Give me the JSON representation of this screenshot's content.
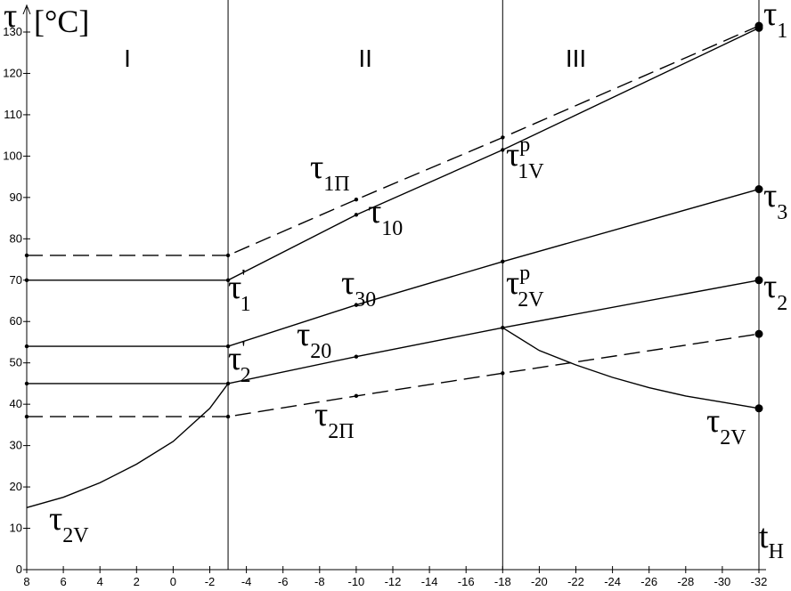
{
  "chart_data": {
    "type": "line",
    "y_label": "τ",
    "y_unit": "[°C]",
    "x_label": {
      "text": "t",
      "sub": "H"
    },
    "xlim": [
      8,
      -32
    ],
    "ylim": [
      0,
      130
    ],
    "xticks": [
      8,
      6,
      4,
      2,
      0,
      -2,
      -4,
      -6,
      -8,
      -10,
      -12,
      -14,
      -16,
      -18,
      -20,
      -22,
      -24,
      -26,
      -28,
      -30,
      -32
    ],
    "yticks": [
      0,
      10,
      20,
      30,
      40,
      50,
      60,
      70,
      80,
      90,
      100,
      110,
      120,
      130
    ],
    "dividers": [
      -3,
      -18,
      -32
    ],
    "regions": [
      {
        "label": "I",
        "x": 2.5
      },
      {
        "label": "II",
        "x": -10.5
      },
      {
        "label": "III",
        "x": -22
      }
    ],
    "series": [
      {
        "color": "#000000",
        "dash": false,
        "markers": true,
        "x": [
          8,
          -3,
          -10,
          -18,
          -32
        ],
        "values": [
          70,
          70,
          85.8,
          101.5,
          131
        ]
      },
      {
        "color": "#000000",
        "dash": true,
        "markers": true,
        "x": [
          8,
          -3,
          -10,
          -18,
          -32
        ],
        "values": [
          76,
          76,
          89.5,
          104.5,
          131.5
        ]
      },
      {
        "color": "#000000",
        "dash": false,
        "markers": true,
        "x": [
          8,
          -3,
          -10,
          -18,
          -32
        ],
        "values": [
          54,
          54,
          64,
          74.5,
          92
        ]
      },
      {
        "color": "#000000",
        "dash": false,
        "markers": true,
        "x": [
          8,
          -3,
          -10,
          -18,
          -32
        ],
        "values": [
          45,
          45,
          51.5,
          58.5,
          70
        ]
      },
      {
        "color": "#000000",
        "dash": true,
        "markers": true,
        "x": [
          8,
          -3,
          -10,
          -18,
          -32
        ],
        "values": [
          37,
          37,
          42,
          47.5,
          57
        ]
      },
      {
        "color": "#000000",
        "dash": false,
        "markers": false,
        "x": [
          8,
          6,
          4,
          2,
          0,
          -2,
          -3,
          -10,
          -18,
          -20,
          -22,
          -24,
          -26,
          -28,
          -30,
          -32
        ],
        "values": [
          15,
          17.5,
          21,
          25.5,
          31,
          39,
          45,
          null,
          58.5,
          53,
          49.5,
          46.5,
          44,
          42,
          40.5,
          39
        ]
      }
    ],
    "annotations": [
      {
        "text": "τ",
        "sub": "1"
      },
      {
        "text": "τ",
        "sub": "3"
      },
      {
        "text": "τ",
        "sub": "2"
      },
      {
        "text": "τ",
        "sub": "2V"
      },
      {
        "text": "τ",
        "sub": "1Π"
      },
      {
        "text": "τ",
        "sub": "10"
      },
      {
        "text": "τ",
        "sup": "'",
        "sub": "1"
      },
      {
        "text": "τ",
        "sub": "30"
      },
      {
        "text": "τ",
        "sub": "20"
      },
      {
        "text": "τ",
        "sup": "'",
        "sub": "2"
      },
      {
        "text": "τ",
        "sub": "2Π"
      },
      {
        "text": "τ",
        "sub": "2V"
      },
      {
        "text": "τ",
        "sup": "p",
        "sub": "1V"
      },
      {
        "text": "τ",
        "sup": "p",
        "sub": "2V"
      }
    ]
  }
}
